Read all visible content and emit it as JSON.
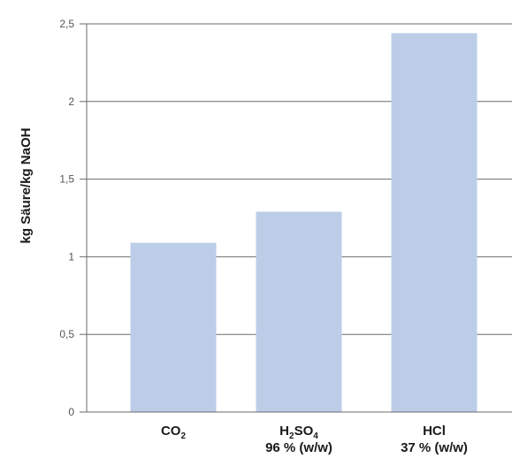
{
  "chart_data": {
    "type": "bar",
    "ylabel": "kg Säure/kg NaOH",
    "xlabel": "",
    "ylim": [
      0,
      2.5
    ],
    "yticks": [
      {
        "value": 0,
        "label": "0"
      },
      {
        "value": 0.5,
        "label": "0,5"
      },
      {
        "value": 1,
        "label": "1"
      },
      {
        "value": 1.5,
        "label": "1,5"
      },
      {
        "value": 2,
        "label": "2"
      },
      {
        "value": 2.5,
        "label": "2,5"
      }
    ],
    "grid": true,
    "bar_color": "#bccde8",
    "categories": [
      {
        "name": "CO",
        "sub": "2",
        "line2": ""
      },
      {
        "name": "H",
        "sub": "2",
        "mid": "SO",
        "sub2": "4",
        "line2": "96 %  (w/w)"
      },
      {
        "name": "HCl",
        "sub": "",
        "line2": "37 %  (w/w)"
      }
    ],
    "values": [
      1.09,
      1.29,
      2.44
    ]
  }
}
